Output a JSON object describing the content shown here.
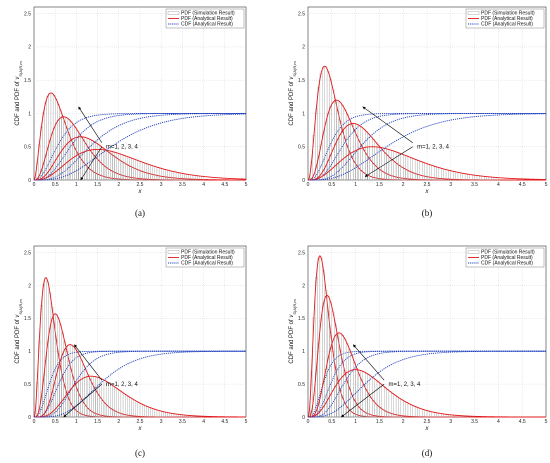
{
  "figure": {
    "panels": [
      {
        "caption": "(a)"
      },
      {
        "caption": "(b)"
      },
      {
        "caption": "(c)"
      },
      {
        "caption": "(d)"
      }
    ]
  },
  "chart_data": [
    {
      "type": "line",
      "caption": "(a)",
      "xlabel": "x",
      "ylabel": "CDF and PDF of v_{S(A)R,m}",
      "xlim": [
        0,
        5
      ],
      "ylim": [
        0,
        2.6
      ],
      "xticks": [
        "0",
        "0.5",
        "1",
        "1.5",
        "2",
        "2.5",
        "3",
        "3.5",
        "4",
        "4.5",
        "5"
      ],
      "yticks": [
        "0",
        "0.5",
        "1",
        "1.5",
        "2",
        "2.5"
      ],
      "grid": true,
      "legend": {
        "position": "top-right",
        "entries": [
          "PDF (Simulation Result)",
          "PDF (Analytical Result)",
          "CDF (Analytical Result)"
        ]
      },
      "annotation": "m=1, 2, 3, 4",
      "m": [
        1,
        2,
        3,
        4
      ],
      "pdf_peaks": [
        {
          "x": 0.4,
          "y": 1.31
        },
        {
          "x": 0.7,
          "y": 0.95
        },
        {
          "x": 1.1,
          "y": 0.65
        },
        {
          "x": 1.5,
          "y": 0.46
        }
      ],
      "cdf_reach_1_near_x": [
        1.5,
        2.3,
        3.5,
        5.0
      ]
    },
    {
      "type": "line",
      "caption": "(b)",
      "xlabel": "x",
      "ylabel": "CDF and PDF of v_{S(A)R,m}",
      "xlim": [
        0,
        5
      ],
      "ylim": [
        0,
        2.6
      ],
      "xticks": [
        "0",
        "0.5",
        "1",
        "1.5",
        "2",
        "2.5",
        "3",
        "3.5",
        "4",
        "4.5",
        "5"
      ],
      "yticks": [
        "0",
        "0.5",
        "1",
        "1.5",
        "2",
        "2.5"
      ],
      "grid": true,
      "legend": {
        "position": "top-right",
        "entries": [
          "PDF (Simulation Result)",
          "PDF (Analytical Result)",
          "CDF (Analytical Result)"
        ]
      },
      "annotation": "m=1, 2, 3, 4",
      "m": [
        1,
        2,
        3,
        4
      ],
      "pdf_peaks": [
        {
          "x": 0.35,
          "y": 1.71
        },
        {
          "x": 0.6,
          "y": 1.2
        },
        {
          "x": 0.95,
          "y": 0.85
        },
        {
          "x": 1.35,
          "y": 0.5
        }
      ],
      "cdf_reach_1_near_x": [
        1.2,
        1.8,
        2.5,
        3.5
      ]
    },
    {
      "type": "line",
      "caption": "(c)",
      "xlabel": "x",
      "ylabel": "CDF and PDF of v_{S(A)R,m}",
      "xlim": [
        0,
        5
      ],
      "ylim": [
        0,
        2.6
      ],
      "xticks": [
        "0",
        "0.5",
        "1",
        "1.5",
        "2",
        "2.5",
        "3",
        "3.5",
        "4",
        "4.5",
        "5"
      ],
      "yticks": [
        "0",
        "0.5",
        "1",
        "1.5",
        "2",
        "2.5"
      ],
      "grid": true,
      "legend": {
        "position": "top-right",
        "entries": [
          "PDF (Simulation Result)",
          "PDF (Analytical Result)",
          "CDF (Analytical Result)"
        ]
      },
      "annotation": "m=1, 2, 3, 4",
      "m": [
        1,
        2,
        3,
        4
      ],
      "pdf_peaks": [
        {
          "x": 0.28,
          "y": 2.12
        },
        {
          "x": 0.5,
          "y": 1.57
        },
        {
          "x": 0.85,
          "y": 1.1
        },
        {
          "x": 1.35,
          "y": 0.62
        }
      ],
      "cdf_reach_1_near_x": [
        1.0,
        1.5,
        2.0,
        3.0
      ]
    },
    {
      "type": "line",
      "caption": "(d)",
      "xlabel": "x",
      "ylabel": "CDF and PDF of v_{S(A)R,m}",
      "xlim": [
        0,
        5
      ],
      "ylim": [
        0,
        2.6
      ],
      "xticks": [
        "0",
        "0.5",
        "1",
        "1.5",
        "2",
        "2.5",
        "3",
        "3.5",
        "4",
        "4.5",
        "5"
      ],
      "yticks": [
        "0",
        "0.5",
        "1",
        "1.5",
        "2",
        "2.5"
      ],
      "grid": true,
      "legend": {
        "position": "top-right",
        "entries": [
          "PDF (Simulation Result)",
          "PDF (Analytical Result)",
          "CDF (Analytical Result)"
        ]
      },
      "annotation": "m=1, 2, 3, 4",
      "m": [
        1,
        2,
        3,
        4
      ],
      "pdf_peaks": [
        {
          "x": 0.25,
          "y": 2.45
        },
        {
          "x": 0.4,
          "y": 1.85
        },
        {
          "x": 0.65,
          "y": 1.28
        },
        {
          "x": 1.0,
          "y": 0.72
        }
      ],
      "cdf_reach_1_near_x": [
        0.8,
        1.2,
        1.6,
        2.4
      ]
    }
  ]
}
